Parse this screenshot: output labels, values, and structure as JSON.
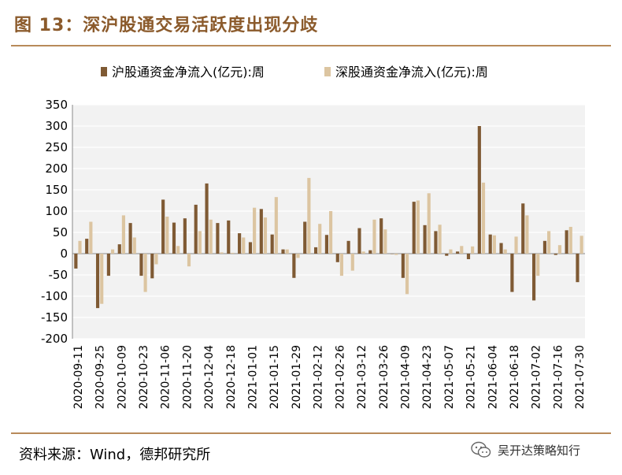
{
  "title": "图 13：深沪股通交易活跃度出现分歧",
  "source": "资料来源：Wind，德邦研究所",
  "watermark": {
    "text": "吴开达策略知行",
    "icon": "wechat-icon"
  },
  "colors": {
    "title": "#8b5a2b",
    "rule": "#b88a5a",
    "hu": "#7f5a34",
    "shen": "#dcc5a1",
    "plot_bg": "#f2f2f2"
  },
  "chart_data": {
    "type": "bar",
    "title": "",
    "xlabel": "",
    "ylabel": "",
    "ylim": [
      -200,
      350
    ],
    "yticks": [
      350,
      300,
      250,
      200,
      150,
      100,
      50,
      0,
      -50,
      -100,
      -150,
      -200
    ],
    "grid": true,
    "legend": "top",
    "xtick_labels": [
      "2020-09-11",
      "2020-09-25",
      "2020-10-09",
      "2020-10-23",
      "2020-11-06",
      "2020-11-20",
      "2020-12-04",
      "2020-12-18",
      "2021-01-01",
      "2021-01-15",
      "2021-01-29",
      "2021-02-12",
      "2021-02-26",
      "2021-03-12",
      "2021-03-26",
      "2021-04-09",
      "2021-04-23",
      "2021-05-07",
      "2021-05-21",
      "2021-06-04",
      "2021-06-18",
      "2021-07-02",
      "2021-07-16",
      "2021-07-30"
    ],
    "categories": [
      "2020-09-11",
      "2020-09-18",
      "2020-09-25",
      "2020-10-02",
      "2020-10-09",
      "2020-10-16",
      "2020-10-23",
      "2020-10-30",
      "2020-11-06",
      "2020-11-13",
      "2020-11-20",
      "2020-11-27",
      "2020-12-04",
      "2020-12-11",
      "2020-12-18",
      "2020-12-25",
      "2021-01-01",
      "2021-01-08",
      "2021-01-15",
      "2021-01-22",
      "2021-01-29",
      "2021-02-05",
      "2021-02-12",
      "2021-02-19",
      "2021-02-26",
      "2021-03-05",
      "2021-03-12",
      "2021-03-19",
      "2021-03-26",
      "2021-04-02",
      "2021-04-09",
      "2021-04-16",
      "2021-04-23",
      "2021-04-30",
      "2021-05-07",
      "2021-05-14",
      "2021-05-21",
      "2021-05-28",
      "2021-06-04",
      "2021-06-11",
      "2021-06-18",
      "2021-06-25",
      "2021-07-02",
      "2021-07-09",
      "2021-07-16",
      "2021-07-23",
      "2021-07-30"
    ],
    "series": [
      {
        "name": "沪股通资金净流入(亿元):周",
        "values": [
          -35,
          35,
          -128,
          -52,
          22,
          72,
          -52,
          -58,
          127,
          73,
          83,
          115,
          165,
          72,
          78,
          48,
          27,
          105,
          45,
          10,
          -57,
          75,
          15,
          44,
          -20,
          30,
          60,
          8,
          83,
          0,
          -57,
          122,
          67,
          53,
          -5,
          5,
          -13,
          300,
          45,
          25,
          -90,
          118,
          -110,
          30,
          -3,
          55,
          -67
        ]
      },
      {
        "name": "深股通资金净流入(亿元):周",
        "values": [
          30,
          75,
          -118,
          10,
          90,
          38,
          -90,
          -25,
          87,
          18,
          -30,
          53,
          80,
          3,
          2,
          38,
          108,
          85,
          133,
          10,
          -10,
          178,
          70,
          100,
          -52,
          -40,
          5,
          80,
          57,
          -3,
          -95,
          125,
          142,
          68,
          10,
          18,
          17,
          167,
          43,
          10,
          40,
          90,
          -52,
          53,
          20,
          63,
          42
        ]
      }
    ]
  }
}
